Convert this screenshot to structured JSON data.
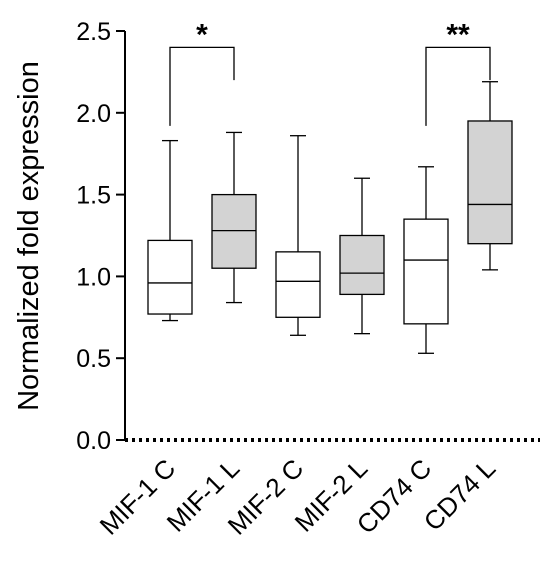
{
  "chart_data": {
    "type": "box",
    "title": "",
    "xlabel": "",
    "ylabel": "Normalized fold expression",
    "ylim": [
      0,
      2.5
    ],
    "yticks": [
      0.0,
      0.5,
      1.0,
      1.5,
      2.0,
      2.5
    ],
    "ytick_labels": [
      "0.0",
      "0.5",
      "1.0",
      "1.5",
      "2.0",
      "2.5"
    ],
    "grid": false,
    "legend": "none",
    "baseline": {
      "y": 0.0,
      "style": "dotted"
    },
    "categories": [
      "MIF-1 C",
      "MIF-1 L",
      "MIF-2 C",
      "MIF-2 L",
      "CD74 C",
      "CD74 L"
    ],
    "boxes": [
      {
        "category": "MIF-1 C",
        "min": 0.73,
        "q1": 0.77,
        "median": 0.96,
        "q3": 1.22,
        "max": 1.83,
        "fill": "#ffffff"
      },
      {
        "category": "MIF-1 L",
        "min": 0.84,
        "q1": 1.05,
        "median": 1.28,
        "q3": 1.5,
        "max": 1.88,
        "fill": "#d3d3d3"
      },
      {
        "category": "MIF-2 C",
        "min": 0.64,
        "q1": 0.75,
        "median": 0.97,
        "q3": 1.15,
        "max": 1.86,
        "fill": "#ffffff"
      },
      {
        "category": "MIF-2 L",
        "min": 0.65,
        "q1": 0.89,
        "median": 1.02,
        "q3": 1.25,
        "max": 1.6,
        "fill": "#d3d3d3"
      },
      {
        "category": "CD74 C",
        "min": 0.53,
        "q1": 0.71,
        "median": 1.1,
        "q3": 1.35,
        "max": 1.67,
        "fill": "#ffffff"
      },
      {
        "category": "CD74 L",
        "min": 1.04,
        "q1": 1.2,
        "median": 1.44,
        "q3": 1.95,
        "max": 2.19,
        "fill": "#d3d3d3"
      }
    ],
    "annotations": [
      {
        "from": "MIF-1 C",
        "to": "MIF-1 L",
        "label": "*",
        "bar_y": 2.4,
        "left_drop": 1.92,
        "right_drop": 2.2
      },
      {
        "from": "CD74 C",
        "to": "CD74 L",
        "label": "**",
        "bar_y": 2.4,
        "left_drop": 1.92,
        "right_drop": 2.2
      }
    ]
  }
}
